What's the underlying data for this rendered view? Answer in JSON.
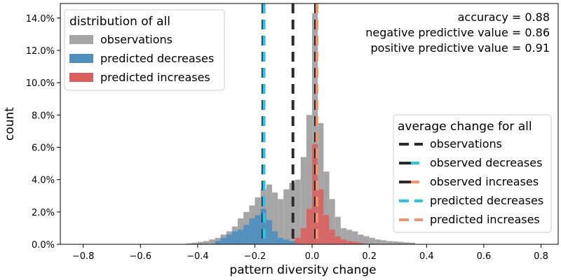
{
  "chart_data": {
    "type": "histogram",
    "xlabel": "pattern diversity change",
    "ylabel": "count",
    "xlim": [
      -0.88,
      0.86
    ],
    "ylim": [
      0,
      0.149
    ],
    "xticks": [
      -0.8,
      -0.6,
      -0.4,
      -0.2,
      0.0,
      0.2,
      0.4,
      0.6,
      0.8
    ],
    "xtick_labels": [
      "−0.8",
      "−0.6",
      "−0.4",
      "−0.2",
      "0.0",
      "0.2",
      "0.4",
      "0.6",
      "0.8"
    ],
    "yticks": [
      0,
      0.02,
      0.04,
      0.06,
      0.08,
      0.1,
      0.12,
      0.14
    ],
    "ytick_labels": [
      "0.0%",
      "2.0%",
      "4.0%",
      "6.0%",
      "8.0%",
      "10.0%",
      "12.0%",
      "14.0%"
    ],
    "bin_width": 0.02,
    "colors": {
      "observations": "#a6a6a6",
      "predicted_decreases": "#4e8fbd",
      "predicted_increases": "#dc5f5f",
      "overlap": "#cc3f3f",
      "line_dark": "#2b2b2b",
      "line_blue": "#22c6f3",
      "line_orange": "#f4946e"
    },
    "series": [
      {
        "name": "observations",
        "bins": [
          [
            -0.44,
            0.0006
          ],
          [
            -0.42,
            0.001
          ],
          [
            -0.4,
            0.0015
          ],
          [
            -0.38,
            0.002
          ],
          [
            -0.36,
            0.003
          ],
          [
            -0.34,
            0.004
          ],
          [
            -0.32,
            0.006
          ],
          [
            -0.3,
            0.008
          ],
          [
            -0.28,
            0.011
          ],
          [
            -0.26,
            0.016
          ],
          [
            -0.24,
            0.02
          ],
          [
            -0.22,
            0.024
          ],
          [
            -0.2,
            0.029
          ],
          [
            -0.18,
            0.034
          ],
          [
            -0.16,
            0.037
          ],
          [
            -0.14,
            0.032
          ],
          [
            -0.12,
            0.028
          ],
          [
            -0.1,
            0.034
          ],
          [
            -0.08,
            0.038
          ],
          [
            -0.06,
            0.04
          ],
          [
            -0.04,
            0.054
          ],
          [
            -0.02,
            0.08
          ],
          [
            0.0,
            0.143
          ],
          [
            0.02,
            0.075
          ],
          [
            0.04,
            0.045
          ],
          [
            0.06,
            0.028
          ],
          [
            0.08,
            0.017
          ],
          [
            0.1,
            0.01
          ],
          [
            0.12,
            0.009
          ],
          [
            0.14,
            0.008
          ],
          [
            0.16,
            0.006
          ],
          [
            0.18,
            0.005
          ],
          [
            0.2,
            0.004
          ],
          [
            0.22,
            0.003
          ],
          [
            0.24,
            0.0025
          ],
          [
            0.26,
            0.002
          ],
          [
            0.28,
            0.0018
          ],
          [
            0.3,
            0.0015
          ],
          [
            0.32,
            0.0012
          ],
          [
            0.34,
            0.001
          ]
        ]
      },
      {
        "name": "predicted decreases",
        "bins": [
          [
            -0.34,
            0.002
          ],
          [
            -0.32,
            0.004
          ],
          [
            -0.3,
            0.006
          ],
          [
            -0.28,
            0.008
          ],
          [
            -0.26,
            0.009
          ],
          [
            -0.24,
            0.012
          ],
          [
            -0.22,
            0.016
          ],
          [
            -0.2,
            0.018
          ],
          [
            -0.18,
            0.022
          ],
          [
            -0.16,
            0.015
          ],
          [
            -0.14,
            0.008
          ],
          [
            -0.12,
            0.004
          ],
          [
            -0.1,
            0.003
          ],
          [
            -0.08,
            0.002
          ],
          [
            -0.06,
            0.0015
          ]
        ]
      },
      {
        "name": "predicted increases",
        "bins": [
          [
            -0.06,
            0.004
          ],
          [
            -0.04,
            0.01
          ],
          [
            -0.02,
            0.022
          ],
          [
            0.0,
            0.062
          ],
          [
            0.02,
            0.034
          ],
          [
            0.04,
            0.018
          ],
          [
            0.06,
            0.009
          ],
          [
            0.08,
            0.005
          ],
          [
            0.1,
            0.003
          ],
          [
            0.12,
            0.002
          ],
          [
            0.14,
            0.0015
          ],
          [
            0.16,
            0.001
          ]
        ]
      }
    ],
    "vlines": [
      {
        "name": "observations",
        "x": -0.067,
        "style": "dark"
      },
      {
        "name": "observed decreases",
        "x": -0.172,
        "style": "dark"
      },
      {
        "name": "observed increases",
        "x": 0.012,
        "style": "dark"
      },
      {
        "name": "predicted decreases",
        "x": -0.168,
        "style": "blue"
      },
      {
        "name": "predicted increases",
        "x": 0.017,
        "style": "orange"
      }
    ],
    "legend_distribution": {
      "title": "distribution of all",
      "items": [
        "observations",
        "predicted decreases",
        "predicted increases"
      ]
    },
    "legend_average": {
      "title": "average change for all",
      "items": [
        "observations",
        "observed decreases",
        "observed increases",
        "predicted decreases",
        "predicted increases"
      ]
    },
    "annotations": [
      "accuracy = 0.88",
      "negative predictive value = 0.86",
      "positive predictive value = 0.91"
    ]
  }
}
